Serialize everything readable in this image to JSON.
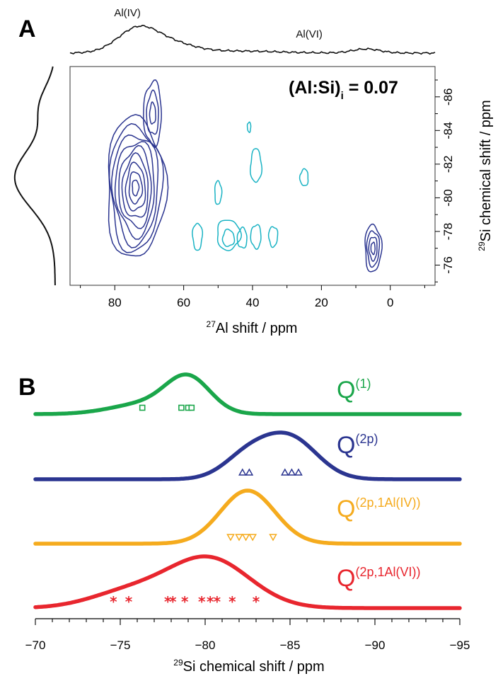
{
  "chart_data": [
    {
      "panel": "A",
      "type": "contour",
      "xlabel_sup": "27",
      "xlabel": "Al shift / ppm",
      "ylabel_sup": "29",
      "ylabel": "Si chemical shift / ppm",
      "xlim": [
        93,
        -13
      ],
      "ylim": [
        -74.8,
        -87.8
      ],
      "xticks": [
        80,
        60,
        40,
        20,
        0
      ],
      "yticks": [
        -76,
        -78,
        -80,
        -82,
        -84,
        -86
      ],
      "ratio_label": "(Al:Si)",
      "ratio_sub": "i",
      "ratio_value": " = 0.07",
      "projection_labels": [
        {
          "text": "Al(IV)",
          "x": 73
        },
        {
          "text": "Al(VI)",
          "x": 28
        }
      ],
      "colors": {
        "strong": "#2b3590",
        "weak": "#1ab3c4"
      },
      "strong_peaks": [
        {
          "x": 74,
          "y": -80.6,
          "rx": 8.5,
          "ry": 4.2,
          "levels": 9
        },
        {
          "x": 69,
          "y": -85.0,
          "rx": 2.6,
          "ry": 1.9,
          "levels": 3
        },
        {
          "x": 5,
          "y": -77.0,
          "rx": 2.4,
          "ry": 1.4,
          "levels": 4
        }
      ],
      "weak_peaks": [
        {
          "x": 56,
          "y": -77.7,
          "rx": 1.4,
          "ry": 0.8
        },
        {
          "x": 47,
          "y": -77.8,
          "rx": 3.4,
          "ry": 0.9
        },
        {
          "x": 47,
          "y": -77.6,
          "rx": 1.7,
          "ry": 0.5
        },
        {
          "x": 43,
          "y": -77.6,
          "rx": 1.4,
          "ry": 0.6
        },
        {
          "x": 39,
          "y": -77.7,
          "rx": 1.5,
          "ry": 0.7
        },
        {
          "x": 34,
          "y": -77.7,
          "rx": 1.3,
          "ry": 0.6
        },
        {
          "x": 50,
          "y": -80.3,
          "rx": 1.0,
          "ry": 0.7
        },
        {
          "x": 39,
          "y": -81.9,
          "rx": 1.6,
          "ry": 1.0
        },
        {
          "x": 25,
          "y": -81.2,
          "rx": 1.2,
          "ry": 0.5
        },
        {
          "x": 41,
          "y": -84.2,
          "rx": 0.5,
          "ry": 0.3
        }
      ]
    },
    {
      "panel": "B",
      "type": "line",
      "xlabel_sup": "29",
      "xlabel": "Si chemical shift / ppm",
      "xlim": [
        -70,
        -95
      ],
      "xticks": [
        -70,
        -75,
        -80,
        -85,
        -90,
        -95
      ],
      "xtick_labels": [
        "−70",
        "−75",
        "−80",
        "−85",
        "−90",
        "−95"
      ],
      "series": [
        {
          "name": "Q",
          "sup": "(1)",
          "color": "#1aa64a",
          "marker": "square",
          "components": [
            {
              "center": -79.0,
              "width": 1.3,
              "amp": 1.0
            },
            {
              "center": -76.5,
              "width": 2.0,
              "amp": 0.3
            }
          ],
          "markers": [
            -76.3,
            -78.6,
            -79.0,
            -79.2
          ]
        },
        {
          "name": "Q",
          "sup": "(2p)",
          "color": "#2b3590",
          "marker": "triangle-up",
          "components": [
            {
              "center": -85.0,
              "width": 1.6,
              "amp": 1.0
            },
            {
              "center": -82.5,
              "width": 1.4,
              "amp": 0.55
            }
          ],
          "markers": [
            -82.2,
            -82.6,
            -84.7,
            -85.1,
            -85.5
          ]
        },
        {
          "name": "Q",
          "sup": "(2p,1Al(IV))",
          "color": "#f5ab1e",
          "marker": "triangle-down",
          "components": [
            {
              "center": -82.5,
              "width": 1.6,
              "amp": 1.0
            }
          ],
          "markers": [
            -81.5,
            -82.0,
            -82.4,
            -82.8,
            -84.0
          ]
        },
        {
          "name": "Q",
          "sup": "(2p,1Al(VI))",
          "color": "#e8262e",
          "marker": "asterisk",
          "components": [
            {
              "center": -80.2,
              "width": 2.4,
              "amp": 0.95
            },
            {
              "center": -75.5,
              "width": 2.3,
              "amp": 0.3
            }
          ],
          "markers": [
            -74.6,
            -75.5,
            -77.8,
            -78.1,
            -78.8,
            -79.8,
            -80.3,
            -80.7,
            -81.6,
            -83.0
          ]
        }
      ]
    }
  ]
}
